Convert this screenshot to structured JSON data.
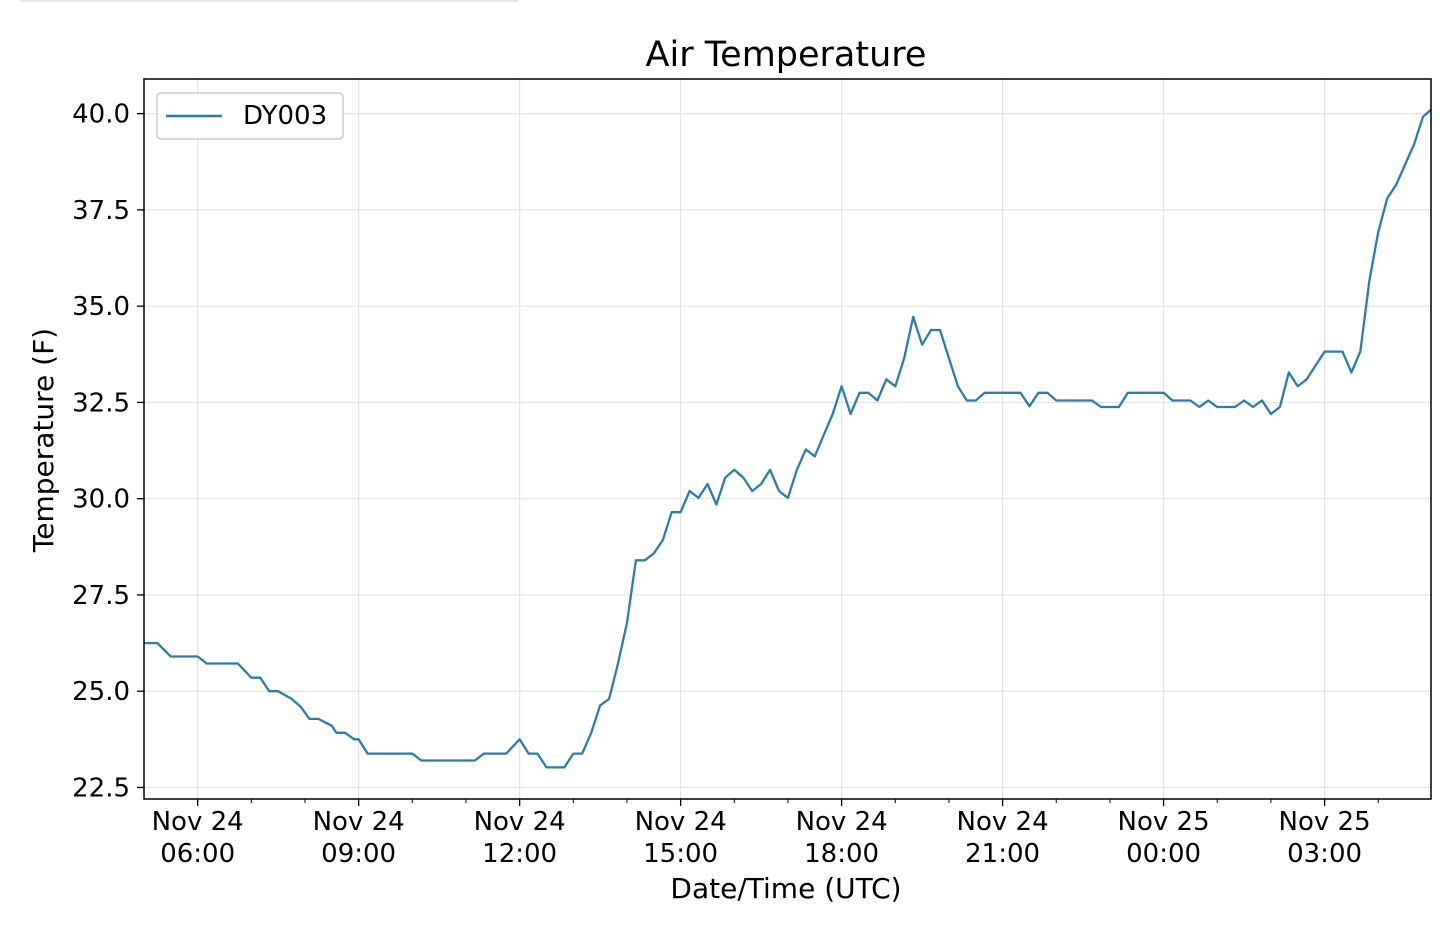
{
  "chart_data": {
    "type": "line",
    "title": "Air Temperature",
    "xlabel": "Date/Time (UTC)",
    "ylabel": "Temperature (F)",
    "grid": true,
    "legend_position": "top-left",
    "x_range": [
      "2018-11-24T05:00",
      "2018-11-25T04:59"
    ],
    "y_range": [
      22.2,
      40.9
    ],
    "yticks": [
      {
        "value": 22.5,
        "label": "22.5"
      },
      {
        "value": 25.0,
        "label": "25.0"
      },
      {
        "value": 27.5,
        "label": "27.5"
      },
      {
        "value": 30.0,
        "label": "30.0"
      },
      {
        "value": 32.5,
        "label": "32.5"
      },
      {
        "value": 35.0,
        "label": "35.0"
      },
      {
        "value": 37.5,
        "label": "37.5"
      },
      {
        "value": 40.0,
        "label": "40.0"
      }
    ],
    "xticks": [
      {
        "value": "2018-11-24T06:00",
        "line1": "Nov 24",
        "line2": "06:00"
      },
      {
        "value": "2018-11-24T09:00",
        "line1": "Nov 24",
        "line2": "09:00"
      },
      {
        "value": "2018-11-24T12:00",
        "line1": "Nov 24",
        "line2": "12:00"
      },
      {
        "value": "2018-11-24T15:00",
        "line1": "Nov 24",
        "line2": "15:00"
      },
      {
        "value": "2018-11-24T18:00",
        "line1": "Nov 24",
        "line2": "18:00"
      },
      {
        "value": "2018-11-24T21:00",
        "line1": "Nov 24",
        "line2": "21:00"
      },
      {
        "value": "2018-11-25T00:00",
        "line1": "Nov 25",
        "line2": "00:00"
      },
      {
        "value": "2018-11-25T03:00",
        "line1": "Nov 25",
        "line2": "03:00"
      }
    ],
    "minor_xticks": [
      "2018-11-24T07:00",
      "2018-11-24T08:00",
      "2018-11-24T10:00",
      "2018-11-24T11:00",
      "2018-11-24T13:00",
      "2018-11-24T14:00",
      "2018-11-24T16:00",
      "2018-11-24T17:00",
      "2018-11-24T19:00",
      "2018-11-24T20:00",
      "2018-11-24T22:00",
      "2018-11-24T23:00",
      "2018-11-25T01:00",
      "2018-11-25T02:00",
      "2018-11-25T04:00"
    ],
    "series": [
      {
        "name": "DY003",
        "color": "#2e7bb1",
        "points": [
          [
            "2018-11-24T05:00",
            26.25
          ],
          [
            "2018-11-24T05:15",
            26.25
          ],
          [
            "2018-11-24T05:30",
            25.9
          ],
          [
            "2018-11-24T05:45",
            25.9
          ],
          [
            "2018-11-24T06:00",
            25.9
          ],
          [
            "2018-11-24T06:10",
            25.72
          ],
          [
            "2018-11-24T06:30",
            25.72
          ],
          [
            "2018-11-24T06:45",
            25.72
          ],
          [
            "2018-11-24T07:00",
            25.35
          ],
          [
            "2018-11-24T07:10",
            25.35
          ],
          [
            "2018-11-24T07:20",
            25.0
          ],
          [
            "2018-11-24T07:30",
            25.0
          ],
          [
            "2018-11-24T07:45",
            24.8
          ],
          [
            "2018-11-24T07:55",
            24.6
          ],
          [
            "2018-11-24T08:05",
            24.28
          ],
          [
            "2018-11-24T08:15",
            24.28
          ],
          [
            "2018-11-24T08:30",
            24.1
          ],
          [
            "2018-11-24T08:35",
            23.92
          ],
          [
            "2018-11-24T08:45",
            23.92
          ],
          [
            "2018-11-24T08:55",
            23.75
          ],
          [
            "2018-11-24T09:00",
            23.75
          ],
          [
            "2018-11-24T09:10",
            23.38
          ],
          [
            "2018-11-24T09:30",
            23.38
          ],
          [
            "2018-11-24T10:00",
            23.38
          ],
          [
            "2018-11-24T10:00",
            23.38
          ],
          [
            "2018-11-24T10:10",
            23.2
          ],
          [
            "2018-11-24T10:30",
            23.2
          ],
          [
            "2018-11-24T11:00",
            23.2
          ],
          [
            "2018-11-24T11:10",
            23.2
          ],
          [
            "2018-11-24T11:20",
            23.38
          ],
          [
            "2018-11-24T11:45",
            23.38
          ],
          [
            "2018-11-24T12:00",
            23.75
          ],
          [
            "2018-11-24T12:10",
            23.38
          ],
          [
            "2018-11-24T12:20",
            23.38
          ],
          [
            "2018-11-24T12:30",
            23.02
          ],
          [
            "2018-11-24T12:50",
            23.02
          ],
          [
            "2018-11-24T13:00",
            23.38
          ],
          [
            "2018-11-24T13:10",
            23.38
          ],
          [
            "2018-11-24T13:20",
            23.92
          ],
          [
            "2018-11-24T13:30",
            24.63
          ],
          [
            "2018-11-24T13:40",
            24.8
          ],
          [
            "2018-11-24T13:50",
            25.72
          ],
          [
            "2018-11-24T14:00",
            26.78
          ],
          [
            "2018-11-24T14:10",
            28.4
          ],
          [
            "2018-11-24T14:20",
            28.4
          ],
          [
            "2018-11-24T14:30",
            28.58
          ],
          [
            "2018-11-24T14:40",
            28.92
          ],
          [
            "2018-11-24T14:50",
            29.65
          ],
          [
            "2018-11-24T15:00",
            29.65
          ],
          [
            "2018-11-24T15:10",
            30.2
          ],
          [
            "2018-11-24T15:20",
            30.02
          ],
          [
            "2018-11-24T15:30",
            30.38
          ],
          [
            "2018-11-24T15:40",
            29.85
          ],
          [
            "2018-11-24T15:50",
            30.55
          ],
          [
            "2018-11-24T16:00",
            30.75
          ],
          [
            "2018-11-24T16:10",
            30.55
          ],
          [
            "2018-11-24T16:20",
            30.2
          ],
          [
            "2018-11-24T16:30",
            30.38
          ],
          [
            "2018-11-24T16:40",
            30.75
          ],
          [
            "2018-11-24T16:50",
            30.2
          ],
          [
            "2018-11-24T17:00",
            30.02
          ],
          [
            "2018-11-24T17:10",
            30.75
          ],
          [
            "2018-11-24T17:20",
            31.28
          ],
          [
            "2018-11-24T17:30",
            31.1
          ],
          [
            "2018-11-24T17:40",
            31.65
          ],
          [
            "2018-11-24T17:50",
            32.2
          ],
          [
            "2018-11-24T18:00",
            32.92
          ],
          [
            "2018-11-24T18:10",
            32.2
          ],
          [
            "2018-11-24T18:20",
            32.75
          ],
          [
            "2018-11-24T18:30",
            32.75
          ],
          [
            "2018-11-24T18:40",
            32.55
          ],
          [
            "2018-11-24T18:50",
            33.1
          ],
          [
            "2018-11-24T19:00",
            32.92
          ],
          [
            "2018-11-24T19:10",
            33.65
          ],
          [
            "2018-11-24T19:20",
            34.72
          ],
          [
            "2018-11-24T19:30",
            34.0
          ],
          [
            "2018-11-24T19:40",
            34.38
          ],
          [
            "2018-11-24T19:50",
            34.38
          ],
          [
            "2018-11-24T20:00",
            33.65
          ],
          [
            "2018-11-24T20:10",
            32.92
          ],
          [
            "2018-11-24T20:20",
            32.55
          ],
          [
            "2018-11-24T20:30",
            32.55
          ],
          [
            "2018-11-24T20:40",
            32.75
          ],
          [
            "2018-11-24T21:00",
            32.75
          ],
          [
            "2018-11-24T21:20",
            32.75
          ],
          [
            "2018-11-24T21:30",
            32.4
          ],
          [
            "2018-11-24T21:40",
            32.75
          ],
          [
            "2018-11-24T21:50",
            32.75
          ],
          [
            "2018-11-24T22:00",
            32.55
          ],
          [
            "2018-11-24T22:20",
            32.55
          ],
          [
            "2018-11-24T22:40",
            32.55
          ],
          [
            "2018-11-24T22:50",
            32.38
          ],
          [
            "2018-11-24T23:10",
            32.38
          ],
          [
            "2018-11-24T23:20",
            32.75
          ],
          [
            "2018-11-24T23:40",
            32.75
          ],
          [
            "2018-11-25T00:00",
            32.75
          ],
          [
            "2018-11-25T00:10",
            32.55
          ],
          [
            "2018-11-25T00:30",
            32.55
          ],
          [
            "2018-11-25T00:40",
            32.38
          ],
          [
            "2018-11-25T00:50",
            32.55
          ],
          [
            "2018-11-25T01:00",
            32.38
          ],
          [
            "2018-11-25T01:20",
            32.38
          ],
          [
            "2018-11-25T01:30",
            32.55
          ],
          [
            "2018-11-25T01:40",
            32.38
          ],
          [
            "2018-11-25T01:50",
            32.55
          ],
          [
            "2018-11-25T02:00",
            32.2
          ],
          [
            "2018-11-25T02:10",
            32.38
          ],
          [
            "2018-11-25T02:20",
            33.28
          ],
          [
            "2018-11-25T02:30",
            32.92
          ],
          [
            "2018-11-25T02:40",
            33.1
          ],
          [
            "2018-11-25T03:00",
            33.82
          ],
          [
            "2018-11-25T03:20",
            33.82
          ],
          [
            "2018-11-25T03:30",
            33.28
          ],
          [
            "2018-11-25T03:40",
            33.82
          ],
          [
            "2018-11-25T03:50",
            35.65
          ],
          [
            "2018-11-25T04:00",
            36.92
          ],
          [
            "2018-11-25T04:10",
            37.8
          ],
          [
            "2018-11-25T04:20",
            38.15
          ],
          [
            "2018-11-25T04:40",
            39.2
          ],
          [
            "2018-11-25T04:50",
            39.92
          ],
          [
            "2018-11-25T04:59",
            40.1
          ]
        ]
      }
    ]
  }
}
